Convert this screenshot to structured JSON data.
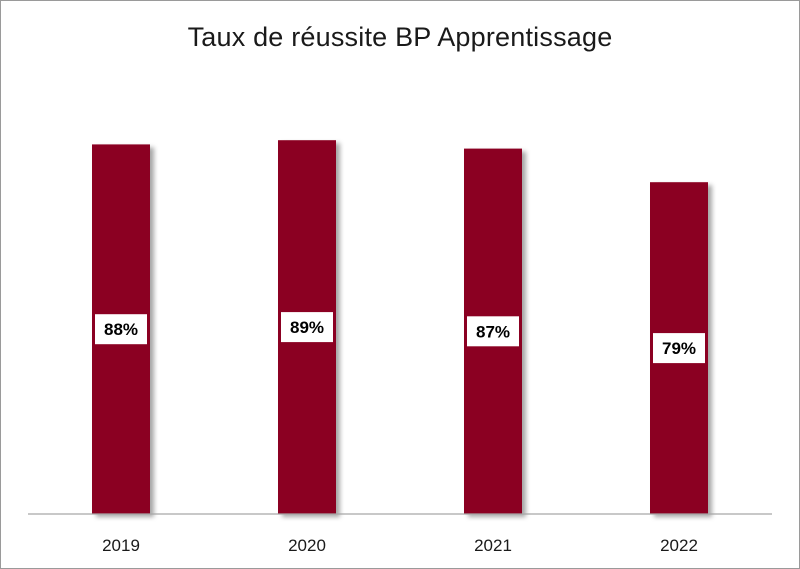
{
  "chart_data": {
    "type": "bar",
    "title": "Taux de réussite BP Apprentissage",
    "categories": [
      "2019",
      "2020",
      "2021",
      "2022"
    ],
    "values": [
      88,
      89,
      87,
      79
    ],
    "data_labels": [
      "88%",
      "89%",
      "87%",
      "79%"
    ],
    "unit": "%",
    "ylim": [
      0,
      90
    ],
    "grid": false,
    "legend": "none",
    "bar_color": "#8b0021"
  }
}
